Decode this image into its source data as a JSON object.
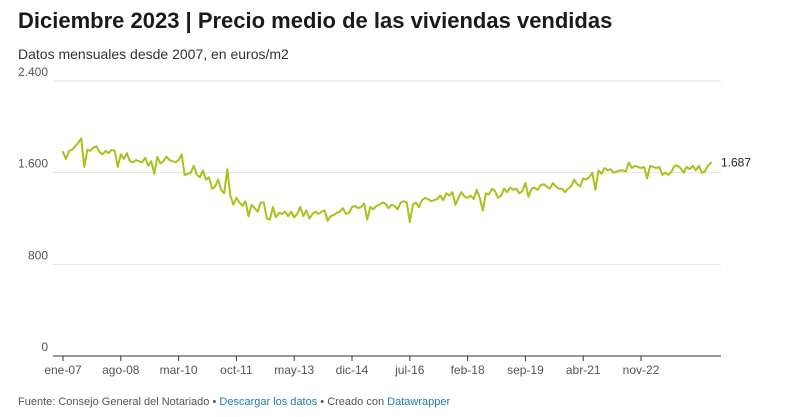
{
  "header": {
    "title": "Diciembre 2023 | Precio medio de las viviendas vendidas",
    "subtitle": "Datos mensuales desde 2007, en euros/m2"
  },
  "footer": {
    "source_prefix": "Fuente: Consejo General del Notariado",
    "separator": "•",
    "download_label": "Descargar los datos",
    "created_prefix": "Creado con",
    "tool_label": "Datawrapper"
  },
  "chart_data": {
    "type": "line",
    "title": "Diciembre 2023 | Precio medio de las viviendas vendidas",
    "subtitle": "Datos mensuales desde 2007, en euros/m2",
    "xlabel": "",
    "ylabel": "",
    "ylim": [
      0,
      2400
    ],
    "yticks": [
      0,
      800,
      1600,
      2400
    ],
    "ytick_labels": [
      "0",
      "800",
      "1.600",
      "2.400"
    ],
    "xtick_labels": [
      "ene-07",
      "ago-08",
      "mar-10",
      "oct-11",
      "may-13",
      "dic-14",
      "jul-16",
      "feb-18",
      "sep-19",
      "abr-21",
      "nov-22"
    ],
    "xtick_month_index": [
      0,
      19,
      38,
      57,
      76,
      95,
      114,
      133,
      152,
      171,
      190
    ],
    "grid": true,
    "line_color": "#a3c41d",
    "end_label": "1.687",
    "series": [
      {
        "start": "2007-01",
        "values": [
          1780,
          1720,
          1790,
          1800,
          1830,
          1860,
          1900,
          1650,
          1800,
          1790,
          1820,
          1830,
          1780,
          1760,
          1790,
          1770,
          1800,
          1790,
          1650,
          1760,
          1720,
          1770,
          1700,
          1690,
          1710,
          1700,
          1690,
          1730,
          1660,
          1700,
          1590,
          1740,
          1680,
          1700,
          1740,
          1710,
          1700,
          1690,
          1710,
          1760,
          1580,
          1590,
          1600,
          1660,
          1580,
          1560,
          1620,
          1540,
          1560,
          1460,
          1480,
          1540,
          1450,
          1420,
          1630,
          1400,
          1320,
          1380,
          1340,
          1310,
          1350,
          1220,
          1320,
          1290,
          1260,
          1340,
          1340,
          1200,
          1190,
          1300,
          1210,
          1250,
          1240,
          1260,
          1220,
          1260,
          1210,
          1240,
          1300,
          1220,
          1270,
          1200,
          1240,
          1260,
          1240,
          1260,
          1270,
          1180,
          1220,
          1230,
          1250,
          1260,
          1290,
          1240,
          1250,
          1300,
          1310,
          1290,
          1300,
          1330,
          1190,
          1300,
          1280,
          1310,
          1320,
          1340,
          1330,
          1290,
          1320,
          1310,
          1280,
          1340,
          1350,
          1340,
          1170,
          1320,
          1340,
          1300,
          1360,
          1380,
          1370,
          1350,
          1360,
          1370,
          1400,
          1360,
          1420,
          1400,
          1430,
          1320,
          1380,
          1430,
          1390,
          1380,
          1400,
          1370,
          1450,
          1380,
          1270,
          1420,
          1410,
          1460,
          1440,
          1380,
          1400,
          1460,
          1430,
          1470,
          1450,
          1460,
          1420,
          1440,
          1510,
          1390,
          1460,
          1470,
          1450,
          1490,
          1500,
          1480,
          1460,
          1510,
          1480,
          1460,
          1460,
          1430,
          1460,
          1480,
          1540,
          1500,
          1480,
          1550,
          1540,
          1560,
          1600,
          1450,
          1620,
          1590,
          1640,
          1620,
          1630,
          1600,
          1610,
          1620,
          1620,
          1610,
          1690,
          1640,
          1660,
          1650,
          1640,
          1650,
          1550,
          1660,
          1650,
          1640,
          1650,
          1580,
          1600,
          1580,
          1610,
          1660,
          1660,
          1640,
          1600,
          1650,
          1630,
          1660,
          1620,
          1660,
          1600,
          1610,
          1660,
          1687
        ]
      }
    ]
  }
}
